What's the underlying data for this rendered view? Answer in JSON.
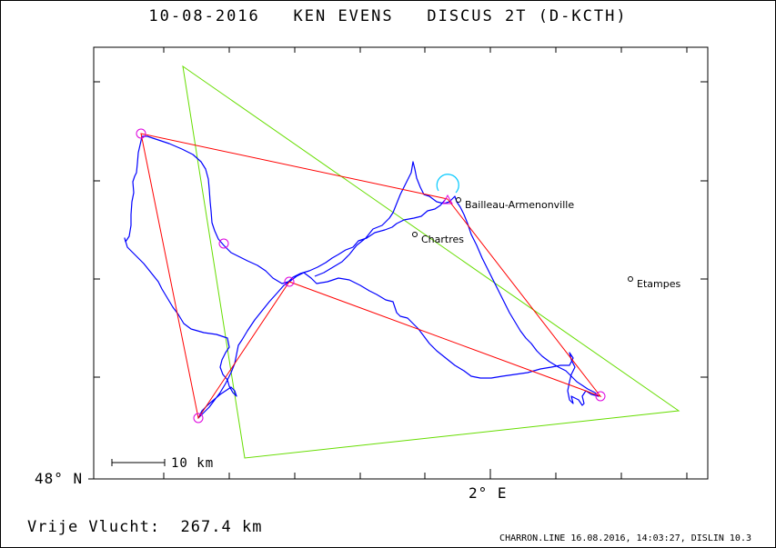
{
  "title": {
    "date": "10-08-2016",
    "pilot": "KEN EVENS",
    "glider": "DISCUS 2T (D-KCTH)"
  },
  "map": {
    "lat_label": "48° N",
    "lon_label": "2° E",
    "scale_label": "10 km",
    "places": [
      {
        "name": "Bailleau-Armenonville",
        "id": "place-bailleau"
      },
      {
        "name": "Chartres",
        "id": "place-chartres"
      },
      {
        "name": "Etampes",
        "id": "place-etampes"
      }
    ],
    "colors": {
      "task": "#ff0000",
      "track": "#0000ff",
      "fai_triangle": "#66dd00",
      "turnpoint": "#dd00dd",
      "start": "#00c8ff"
    }
  },
  "summary": {
    "distance_label": "Vrije Vlucht:",
    "distance_value": "267.4 km"
  },
  "footer": "CHARRON.LINE 16.08.2016, 14:03:27, DISLIN 10.3"
}
